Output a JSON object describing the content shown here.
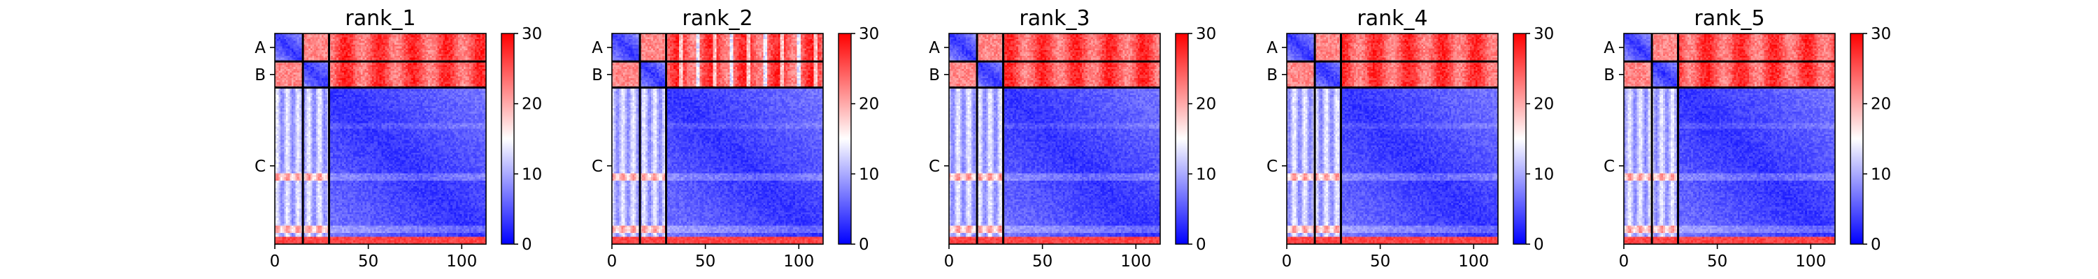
{
  "chart_data": {
    "type": "heatmap",
    "description_units": "residue index",
    "colorbar": {
      "min": 0,
      "max": 30,
      "ticks": [
        0,
        10,
        20,
        30
      ],
      "colormap": "bwr"
    },
    "colors": {
      "low": "#0000ff",
      "mid": "#ffffff",
      "high": "#ff0000"
    },
    "x_ticks": [
      0,
      50,
      100
    ],
    "x_range": [
      0,
      113
    ],
    "chains": [
      {
        "label": "A",
        "start": 0,
        "end": 15
      },
      {
        "label": "B",
        "start": 15,
        "end": 29
      },
      {
        "label": "C",
        "start": 29,
        "end": 113
      }
    ],
    "panels": [
      {
        "title": "rank_1"
      },
      {
        "title": "rank_2"
      },
      {
        "title": "rank_3"
      },
      {
        "title": "rank_4"
      },
      {
        "title": "rank_5"
      }
    ]
  }
}
